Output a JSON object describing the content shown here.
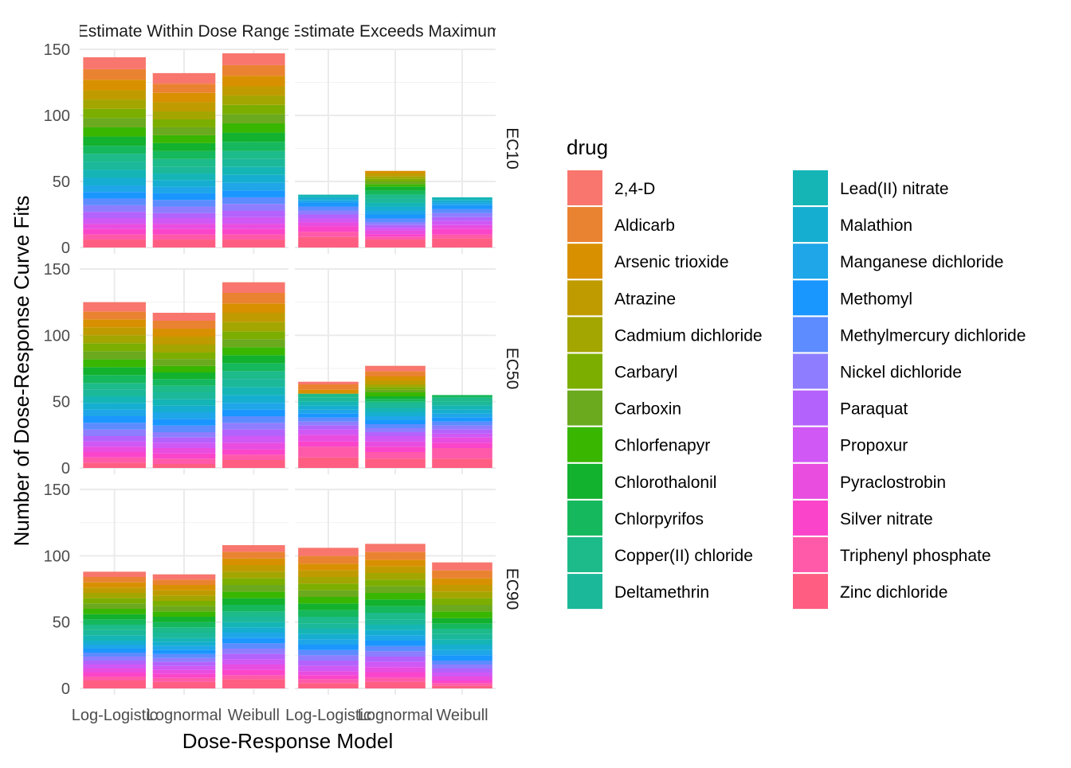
{
  "chart_data": {
    "type": "bar",
    "stacked": true,
    "facets": {
      "columns": [
        "Estimate Within Dose Range",
        "Estimate Exceeds Maximum"
      ],
      "rows": [
        "EC10",
        "EC50",
        "EC90"
      ]
    },
    "xlabel": "Dose-Response Model",
    "ylabel": "Number of Dose-Response Curve Fits",
    "categories": [
      "Log-Logistic",
      "Lognormal",
      "Weibull"
    ],
    "ylim": [
      0,
      150
    ],
    "yticks": [
      0,
      50,
      100,
      150
    ],
    "legend": {
      "title": "drug",
      "position": "right",
      "entries": [
        {
          "name": "2,4-D",
          "color": "#F8766D"
        },
        {
          "name": "Aldicarb",
          "color": "#EA8331"
        },
        {
          "name": "Arsenic trioxide",
          "color": "#D89000"
        },
        {
          "name": "Atrazine",
          "color": "#C09B00"
        },
        {
          "name": "Cadmium dichloride",
          "color": "#A3A500"
        },
        {
          "name": "Carbaryl",
          "color": "#7CAE00"
        },
        {
          "name": "Carboxin",
          "color": "#6BA91E"
        },
        {
          "name": "Chlorfenapyr",
          "color": "#39B600"
        },
        {
          "name": "Chlorothalonil",
          "color": "#12B12E"
        },
        {
          "name": "Chlorpyrifos",
          "color": "#15B85C"
        },
        {
          "name": "Copper(II) chloride",
          "color": "#1DBA8A"
        },
        {
          "name": "Deltamethrin",
          "color": "#1BB89A"
        },
        {
          "name": "Lead(II) nitrate",
          "color": "#15B5B6"
        },
        {
          "name": "Malathion",
          "color": "#16AED0"
        },
        {
          "name": "Manganese dichloride",
          "color": "#1EA6E8"
        },
        {
          "name": "Methomyl",
          "color": "#1A96FF"
        },
        {
          "name": "Methylmercury dichloride",
          "color": "#5C8CFF"
        },
        {
          "name": "Nickel dichloride",
          "color": "#8F7DFF"
        },
        {
          "name": "Paraquat",
          "color": "#B462FC"
        },
        {
          "name": "Propoxur",
          "color": "#D058F4"
        },
        {
          "name": "Pyraclostrobin",
          "color": "#E84DE0"
        },
        {
          "name": "Silver nitrate",
          "color": "#FA45CA"
        },
        {
          "name": "Triphenyl phosphate",
          "color": "#FF5AAA"
        },
        {
          "name": "Zinc dichloride",
          "color": "#FF5E82"
        }
      ]
    },
    "panels": [
      {
        "row": "EC10",
        "column": "Estimate Within Dose Range",
        "series": [
          [
            9,
            8,
            8,
            7,
            7,
            7,
            7,
            7,
            7,
            6,
            6,
            6,
            6,
            6,
            5,
            5,
            5,
            5,
            5,
            4,
            4,
            4,
            4,
            6
          ],
          [
            8,
            7,
            7,
            7,
            6,
            6,
            6,
            6,
            6,
            6,
            6,
            5,
            5,
            5,
            5,
            5,
            5,
            5,
            4,
            4,
            4,
            4,
            4,
            6
          ],
          [
            9,
            8,
            8,
            7,
            7,
            7,
            7,
            7,
            7,
            7,
            6,
            6,
            6,
            6,
            6,
            5,
            5,
            5,
            5,
            5,
            4,
            4,
            4,
            6
          ]
        ]
      },
      {
        "row": "EC10",
        "column": "Estimate Exceeds Maximum",
        "series": [
          [
            0,
            0,
            0,
            0,
            0,
            0,
            0,
            0,
            0,
            0,
            0,
            0,
            2,
            2,
            2,
            3,
            3,
            3,
            3,
            3,
            3,
            4,
            4,
            8
          ],
          [
            0,
            0,
            2,
            2,
            2,
            2,
            2,
            2,
            3,
            3,
            3,
            3,
            3,
            3,
            3,
            3,
            3,
            2,
            2,
            2,
            3,
            2,
            2,
            6
          ],
          [
            0,
            0,
            0,
            0,
            0,
            0,
            0,
            0,
            0,
            0,
            0,
            0,
            2,
            2,
            2,
            3,
            3,
            3,
            3,
            3,
            3,
            4,
            3,
            7
          ]
        ]
      },
      {
        "row": "EC50",
        "column": "Estimate Within Dose Range",
        "series": [
          [
            7,
            6,
            6,
            6,
            6,
            6,
            6,
            6,
            6,
            6,
            5,
            5,
            5,
            5,
            5,
            5,
            5,
            5,
            4,
            4,
            4,
            4,
            4,
            4
          ],
          [
            6,
            6,
            6,
            6,
            6,
            5,
            5,
            5,
            5,
            5,
            5,
            5,
            5,
            5,
            5,
            5,
            5,
            4,
            4,
            4,
            4,
            4,
            4,
            3
          ],
          [
            8,
            8,
            7,
            7,
            7,
            6,
            6,
            6,
            6,
            6,
            6,
            6,
            6,
            6,
            5,
            5,
            5,
            5,
            5,
            5,
            5,
            4,
            4,
            6
          ]
        ]
      },
      {
        "row": "EC50",
        "column": "Estimate Exceeds Maximum",
        "series": [
          [
            2,
            4,
            3,
            0,
            0,
            0,
            0,
            0,
            0,
            0,
            3,
            3,
            3,
            3,
            3,
            3,
            3,
            3,
            3,
            4,
            5,
            4,
            8,
            8
          ],
          [
            4,
            4,
            3,
            3,
            2,
            2,
            2,
            3,
            2,
            2,
            2,
            3,
            3,
            3,
            3,
            3,
            3,
            3,
            3,
            4,
            4,
            4,
            5,
            7
          ],
          [
            0,
            0,
            0,
            0,
            0,
            0,
            0,
            0,
            0,
            2,
            3,
            3,
            3,
            3,
            3,
            3,
            3,
            3,
            3,
            3,
            4,
            4,
            8,
            7
          ]
        ]
      },
      {
        "row": "EC90",
        "column": "Estimate Within Dose Range",
        "series": [
          [
            4,
            4,
            4,
            4,
            4,
            4,
            4,
            4,
            4,
            4,
            4,
            4,
            4,
            3,
            3,
            3,
            3,
            3,
            3,
            3,
            3,
            3,
            3,
            6
          ],
          [
            4,
            4,
            4,
            4,
            4,
            4,
            4,
            4,
            4,
            4,
            4,
            4,
            3,
            3,
            3,
            3,
            3,
            3,
            3,
            3,
            3,
            3,
            3,
            5
          ],
          [
            5,
            5,
            5,
            5,
            5,
            5,
            5,
            5,
            5,
            5,
            4,
            4,
            4,
            4,
            4,
            4,
            4,
            4,
            4,
            4,
            4,
            4,
            3,
            7
          ]
        ]
      },
      {
        "row": "EC90",
        "column": "Estimate Exceeds Maximum",
        "series": [
          [
            6,
            6,
            5,
            5,
            5,
            5,
            5,
            5,
            5,
            5,
            5,
            4,
            4,
            4,
            4,
            4,
            4,
            4,
            4,
            4,
            3,
            3,
            3,
            4
          ],
          [
            6,
            6,
            5,
            5,
            5,
            5,
            5,
            5,
            5,
            5,
            5,
            4,
            4,
            4,
            4,
            4,
            4,
            4,
            4,
            4,
            4,
            4,
            3,
            5
          ],
          [
            6,
            6,
            5,
            5,
            5,
            5,
            5,
            5,
            4,
            4,
            4,
            4,
            4,
            4,
            4,
            4,
            3,
            3,
            3,
            3,
            3,
            2,
            2,
            2
          ]
        ]
      }
    ]
  }
}
